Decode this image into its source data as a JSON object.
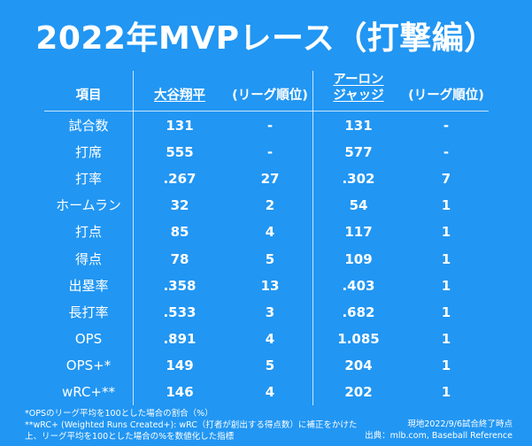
{
  "title": "2022年MVPレース（打撃編）",
  "headers": {
    "item": "項目",
    "player1": "大谷翔平",
    "rank1": "(リーグ順位)",
    "player2_line1": "アーロン",
    "player2_line2": "ジャッジ",
    "rank2": "(リーグ順位)"
  },
  "rows": [
    {
      "label": "試合数",
      "p1": "131",
      "r1": "-",
      "p2": "131",
      "r2": "-"
    },
    {
      "label": "打席",
      "p1": "555",
      "r1": "-",
      "p2": "577",
      "r2": "-"
    },
    {
      "label": "打率",
      "p1": ".267",
      "r1": "27",
      "p2": ".302",
      "r2": "7"
    },
    {
      "label": "ホームラン",
      "p1": "32",
      "r1": "2",
      "p2": "54",
      "r2": "1"
    },
    {
      "label": "打点",
      "p1": "85",
      "r1": "4",
      "p2": "117",
      "r2": "1"
    },
    {
      "label": "得点",
      "p1": "78",
      "r1": "5",
      "p2": "109",
      "r2": "1"
    },
    {
      "label": "出塁率",
      "p1": ".358",
      "r1": "13",
      "p2": ".403",
      "r2": "1"
    },
    {
      "label": "長打率",
      "p1": ".533",
      "r1": "3",
      "p2": ".682",
      "r2": "1"
    },
    {
      "label": "OPS",
      "p1": ".891",
      "r1": "4",
      "p2": "1.085",
      "r2": "1"
    },
    {
      "label": "OPS+*",
      "p1": "149",
      "r1": "5",
      "p2": "204",
      "r2": "1"
    },
    {
      "label": "wRC+**",
      "p1": "146",
      "r1": "4",
      "p2": "202",
      "r2": "1"
    }
  ],
  "footnotes": {
    "line1": "*OPSのリーグ平均を100とした場合の割合（%）",
    "line2": "**wRC+ (Weighted Runs Created+): wRC（打者が創出する得点数）に補正をかけた",
    "line3": "上、リーグ平均を100とした場合の%を数値化した指標"
  },
  "source": {
    "asof": "現地2022/9/6試合終了時点",
    "credit": "出典：mlb.com, Baseball Reference"
  }
}
